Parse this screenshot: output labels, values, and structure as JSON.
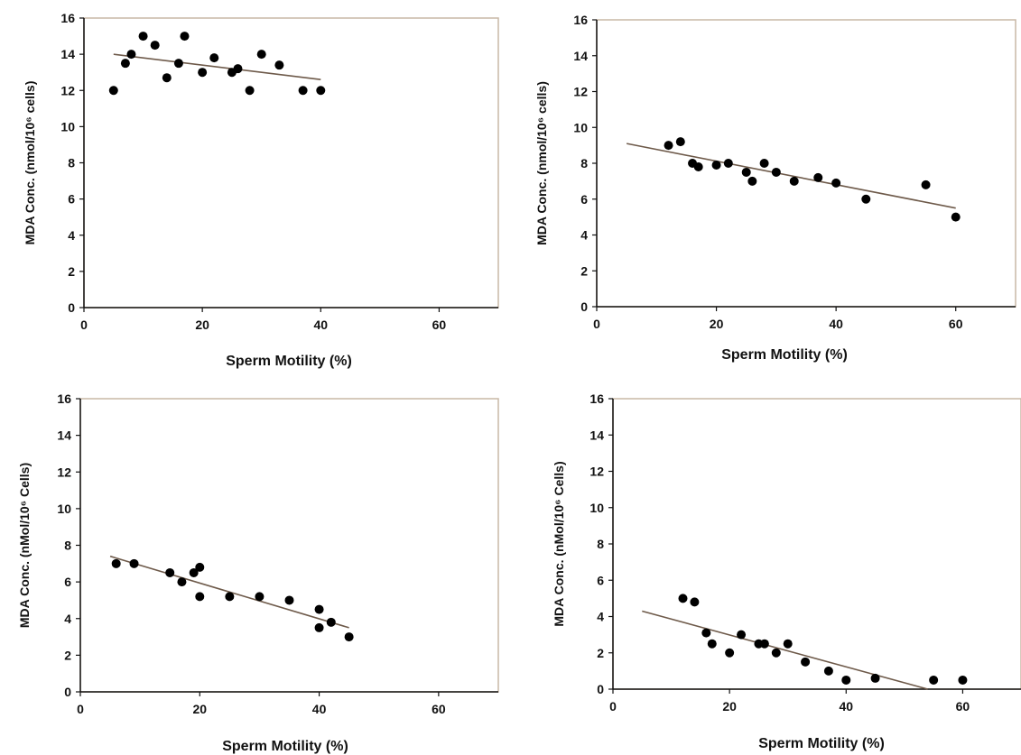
{
  "chart_data": [
    {
      "type": "scatter",
      "xlabel": "Sperm Motility (%)",
      "ylabel": "MDA Conc. (nmol/10⁶ cells)",
      "xlim": [
        0,
        70
      ],
      "ylim": [
        0,
        16
      ],
      "xticks": [
        0,
        20,
        40,
        60
      ],
      "yticks": [
        0,
        2,
        4,
        6,
        8,
        10,
        12,
        14,
        16
      ],
      "points": [
        [
          5,
          12
        ],
        [
          7,
          13.5
        ],
        [
          8,
          14
        ],
        [
          10,
          15
        ],
        [
          12,
          14.5
        ],
        [
          14,
          12.7
        ],
        [
          16,
          13.5
        ],
        [
          17,
          15
        ],
        [
          20,
          13
        ],
        [
          22,
          13.8
        ],
        [
          25,
          13
        ],
        [
          26,
          13.2
        ],
        [
          28,
          12
        ],
        [
          30,
          14
        ],
        [
          33,
          13.4
        ],
        [
          37,
          12
        ],
        [
          40,
          12
        ]
      ],
      "trendline": [
        [
          5,
          14
        ],
        [
          40,
          12.6
        ]
      ],
      "grid": false
    },
    {
      "type": "scatter",
      "xlabel": "Sperm Motility (%)",
      "ylabel": "MDA Conc. (nmol/10⁶ cells)",
      "xlim": [
        0,
        70
      ],
      "ylim": [
        0,
        16
      ],
      "xticks": [
        0,
        20,
        40,
        60
      ],
      "yticks": [
        0,
        2,
        4,
        6,
        8,
        10,
        12,
        14,
        16
      ],
      "points": [
        [
          12,
          9
        ],
        [
          14,
          9.2
        ],
        [
          16,
          8
        ],
        [
          17,
          7.8
        ],
        [
          20,
          7.9
        ],
        [
          22,
          8
        ],
        [
          25,
          7.5
        ],
        [
          26,
          7
        ],
        [
          28,
          8
        ],
        [
          30,
          7.5
        ],
        [
          33,
          7
        ],
        [
          37,
          7.2
        ],
        [
          40,
          6.9
        ],
        [
          45,
          6
        ],
        [
          55,
          6.8
        ],
        [
          60,
          5
        ]
      ],
      "trendline": [
        [
          5,
          9.1
        ],
        [
          60,
          5.5
        ]
      ],
      "grid": false
    },
    {
      "type": "scatter",
      "xlabel": "Sperm Motility (%)",
      "ylabel": "MDA Conc. (nMol/10⁶ Cells)",
      "xlim": [
        0,
        70
      ],
      "ylim": [
        0,
        16
      ],
      "xticks": [
        0,
        20,
        40,
        60
      ],
      "yticks": [
        0,
        2,
        4,
        6,
        8,
        10,
        12,
        14,
        16
      ],
      "points": [
        [
          6,
          7
        ],
        [
          9,
          7
        ],
        [
          15,
          6.5
        ],
        [
          17,
          6
        ],
        [
          19,
          6.5
        ],
        [
          20,
          6.8
        ],
        [
          20,
          5.2
        ],
        [
          25,
          5.2
        ],
        [
          30,
          5.2
        ],
        [
          35,
          5
        ],
        [
          40,
          4.5
        ],
        [
          40,
          3.5
        ],
        [
          42,
          3.8
        ],
        [
          45,
          3
        ]
      ],
      "trendline": [
        [
          5,
          7.4
        ],
        [
          45,
          3.5
        ]
      ],
      "grid": false
    },
    {
      "type": "scatter",
      "xlabel": "Sperm Motility (%)",
      "ylabel": "MDA Conc. (nMol/10⁶ Cells)",
      "xlim": [
        0,
        70
      ],
      "ylim": [
        0,
        16
      ],
      "xticks": [
        0,
        20,
        40,
        60
      ],
      "yticks": [
        0,
        2,
        4,
        6,
        8,
        10,
        12,
        14,
        16
      ],
      "points": [
        [
          12,
          5
        ],
        [
          14,
          4.8
        ],
        [
          16,
          3.1
        ],
        [
          17,
          2.5
        ],
        [
          20,
          2
        ],
        [
          22,
          3
        ],
        [
          25,
          2.5
        ],
        [
          26,
          2.5
        ],
        [
          28,
          2
        ],
        [
          30,
          2.5
        ],
        [
          33,
          1.5
        ],
        [
          37,
          1
        ],
        [
          40,
          0.5
        ],
        [
          45,
          0.6
        ],
        [
          55,
          0.5
        ],
        [
          60,
          0.5
        ]
      ],
      "trendline": [
        [
          5,
          4.3
        ],
        [
          54,
          0
        ]
      ],
      "grid": false
    }
  ]
}
